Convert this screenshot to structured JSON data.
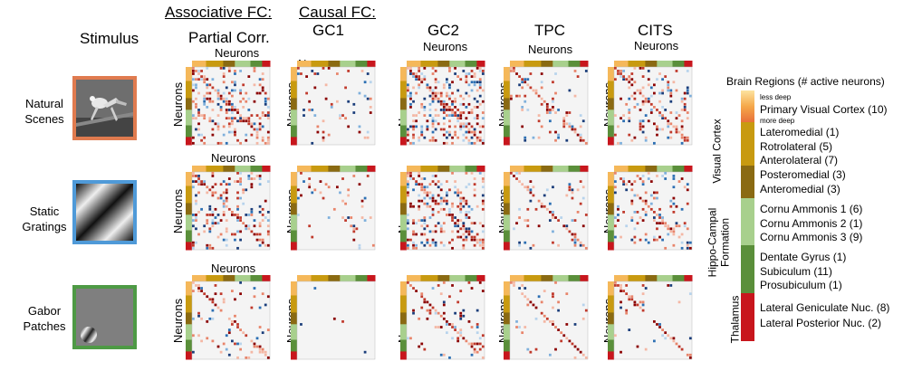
{
  "headers": {
    "associative": "Associative FC:",
    "causal": "Causal FC:",
    "stimulus": "Stimulus",
    "methods": [
      "Partial Corr.",
      "GC1",
      "GC2",
      "TPC",
      "CITS"
    ],
    "neurons": "Neurons"
  },
  "stimuli": [
    {
      "label_line1": "Natural",
      "label_line2": "Scenes",
      "border_color": "#e07b4f"
    },
    {
      "label_line1": "Static",
      "label_line2": "Gratings",
      "border_color": "#4f9ad8"
    },
    {
      "label_line1": "Gabor",
      "label_line2": "Patches",
      "border_color": "#4e9a45"
    }
  ],
  "legend": {
    "title": "Brain Regions (# active neurons)",
    "less_deep": "less deep",
    "more_deep": "more deep",
    "groups": [
      {
        "name": "Visual Cortex",
        "items": [
          "Primary Visual Cortex (10)",
          "Lateromedial (1)",
          "Rotrolateral (5)",
          "Anterolateral (7)",
          "Posteromedial (3)",
          "Anteromedial (3)"
        ]
      },
      {
        "name_line1": "Hippo-Campal",
        "name_line2": "Formation",
        "items": [
          "Cornu Ammonis 1 (6)",
          "Cornu Ammonis 2 (1)",
          "Cornu Ammonis 3 (9)",
          "Dentate Gyrus (1)",
          "Subiculum (11)",
          "Prosubiculum (1)"
        ]
      },
      {
        "name": "Thalamus",
        "items": [
          "Lateral Geniculate Nuc. (8)",
          "Lateral Posterior Nuc. (2)"
        ]
      }
    ],
    "colors": {
      "v1": "#f5b85a",
      "gold": "#c89a10",
      "brown": "#8a6a12",
      "lightgreen": "#a8d08d",
      "darkgreen": "#5a8f3a",
      "red": "#c8161d"
    }
  }
}
